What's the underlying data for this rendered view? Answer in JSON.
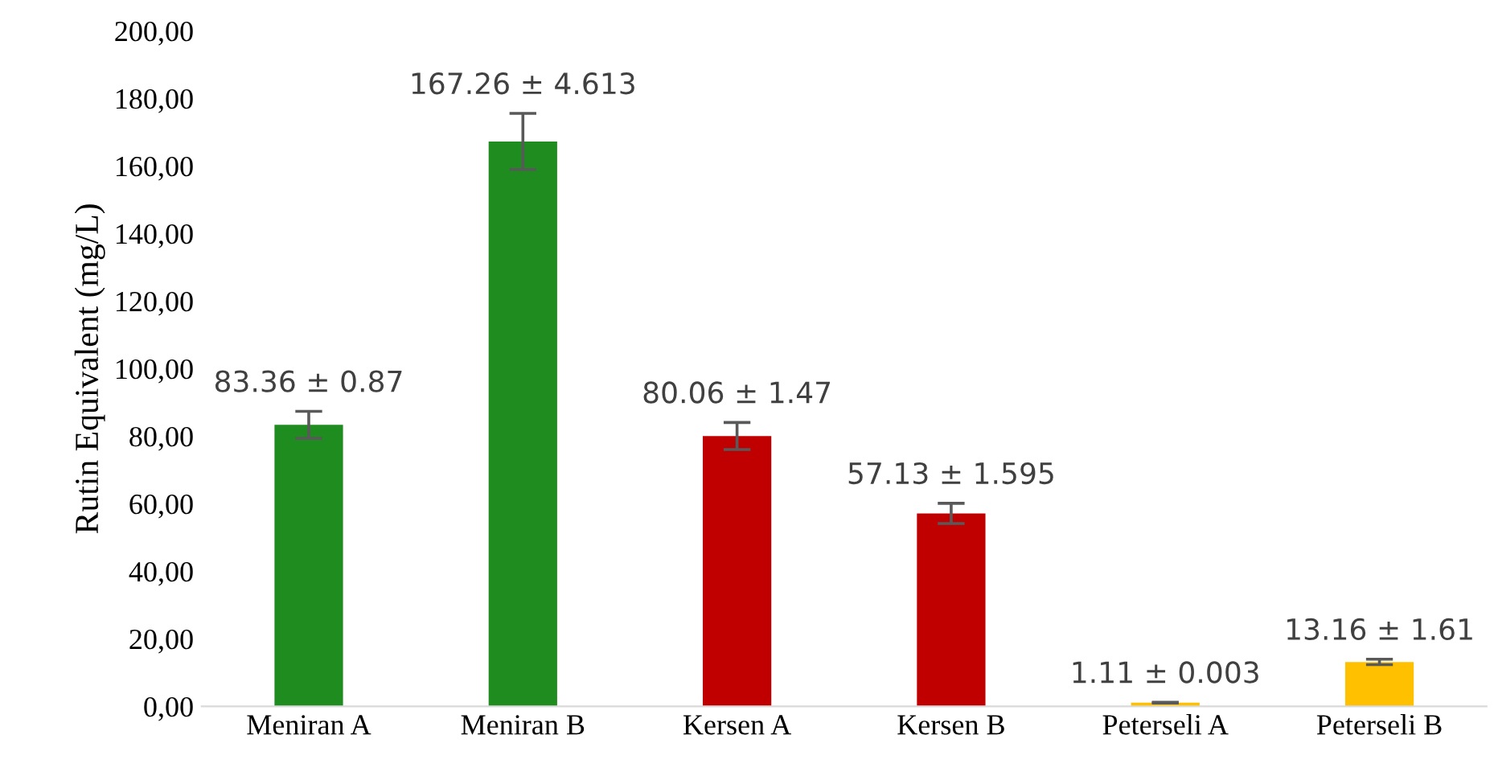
{
  "chart_data": {
    "type": "bar",
    "ylabel": "Rutin Equivalent (mg/L)",
    "categories": [
      "Meniran A",
      "Meniran B",
      "Kersen A",
      "Kersen B",
      "Peterseli A",
      "Peterseli B"
    ],
    "values": [
      83.36,
      167.26,
      80.06,
      57.13,
      1.11,
      13.16
    ],
    "colors": [
      "#1e8c1e",
      "#1e8c1e",
      "#c00000",
      "#c00000",
      "#ffc000",
      "#ffc000"
    ],
    "errors": [
      4,
      8.3,
      4,
      3,
      0.1,
      0.8
    ],
    "value_labels": [
      "83.36 ± 0.87",
      "167.26 ± 4.613",
      "80.06 ± 1.47",
      "57.13 ± 1.595",
      "1.11 ± 0.003",
      "13.16 ± 1.61"
    ],
    "ylim": [
      0,
      200
    ],
    "yticks": [
      {
        "value": 0,
        "label": "0,00"
      },
      {
        "value": 20,
        "label": "20,00"
      },
      {
        "value": 40,
        "label": "40,00"
      },
      {
        "value": 60,
        "label": "60,00"
      },
      {
        "value": 80,
        "label": "80,00"
      },
      {
        "value": 100,
        "label": "100,00"
      },
      {
        "value": 120,
        "label": "120,00"
      },
      {
        "value": 140,
        "label": "140,00"
      },
      {
        "value": 160,
        "label": "160,00"
      },
      {
        "value": 180,
        "label": "180,00"
      },
      {
        "value": 200,
        "label": "200,00"
      }
    ],
    "grid": false,
    "legend": false
  }
}
